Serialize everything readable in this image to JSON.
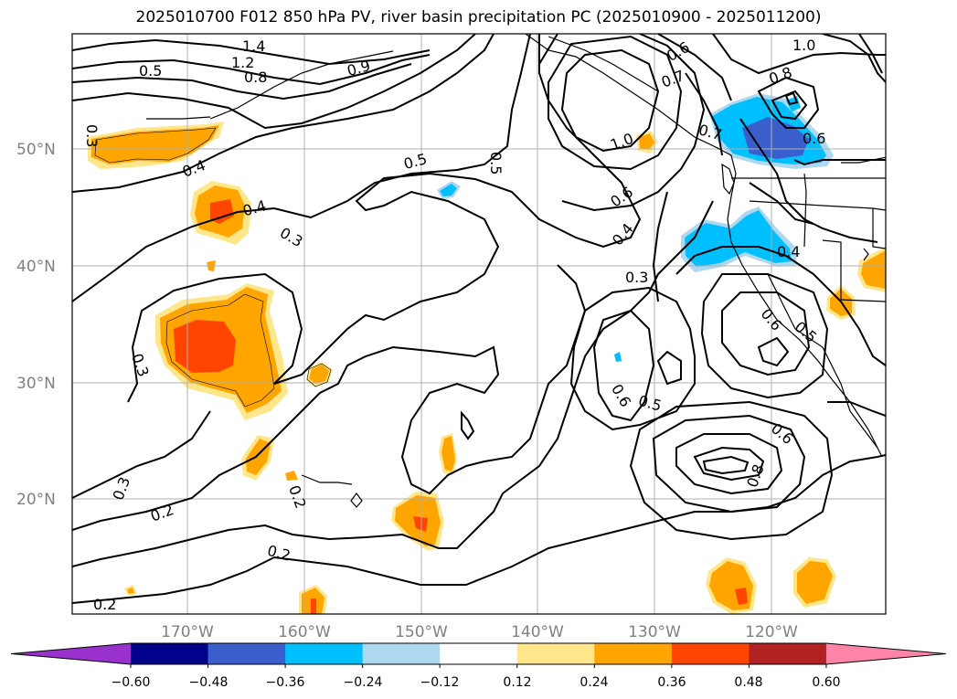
{
  "title": "2025010700 F012 850 hPa PV, river basin precipitation PC (2025010900 - 2025011200)",
  "map": {
    "lat_labels": [
      "50°N",
      "40°N",
      "30°N",
      "20°N"
    ],
    "lon_labels": [
      "170°W",
      "160°W",
      "150°W",
      "140°W",
      "130°W",
      "120°W"
    ],
    "contour_labels": [
      "1.4",
      "1.2",
      "0.8",
      "0.5",
      "0.3",
      "0.4",
      "0.5",
      "0.5",
      "0.4",
      "0.3",
      "0.3",
      "0.3",
      "0.2",
      "0.2",
      "0.2",
      "0.2",
      "0.6",
      "0.7",
      "1.0",
      "1.0",
      "0.8",
      "0.7",
      "0.6",
      "0.6",
      "0.4",
      "0.3",
      "0.4",
      "0.6",
      "0.5",
      "0.6",
      "0.5",
      "0.6",
      "0.8",
      "0.9"
    ]
  },
  "colorbar": {
    "ticks": [
      "−0.60",
      "−0.48",
      "−0.36",
      "−0.24",
      "−0.12",
      "0.12",
      "0.24",
      "0.36",
      "0.48",
      "0.60"
    ],
    "colors": [
      "#9932cc",
      "#00008b",
      "#3a5fcd",
      "#00bfff",
      "#add8f0",
      "#ffffff",
      "#ffe68a",
      "#ffa500",
      "#ff4500",
      "#b22222",
      "#ff85a8"
    ]
  }
}
